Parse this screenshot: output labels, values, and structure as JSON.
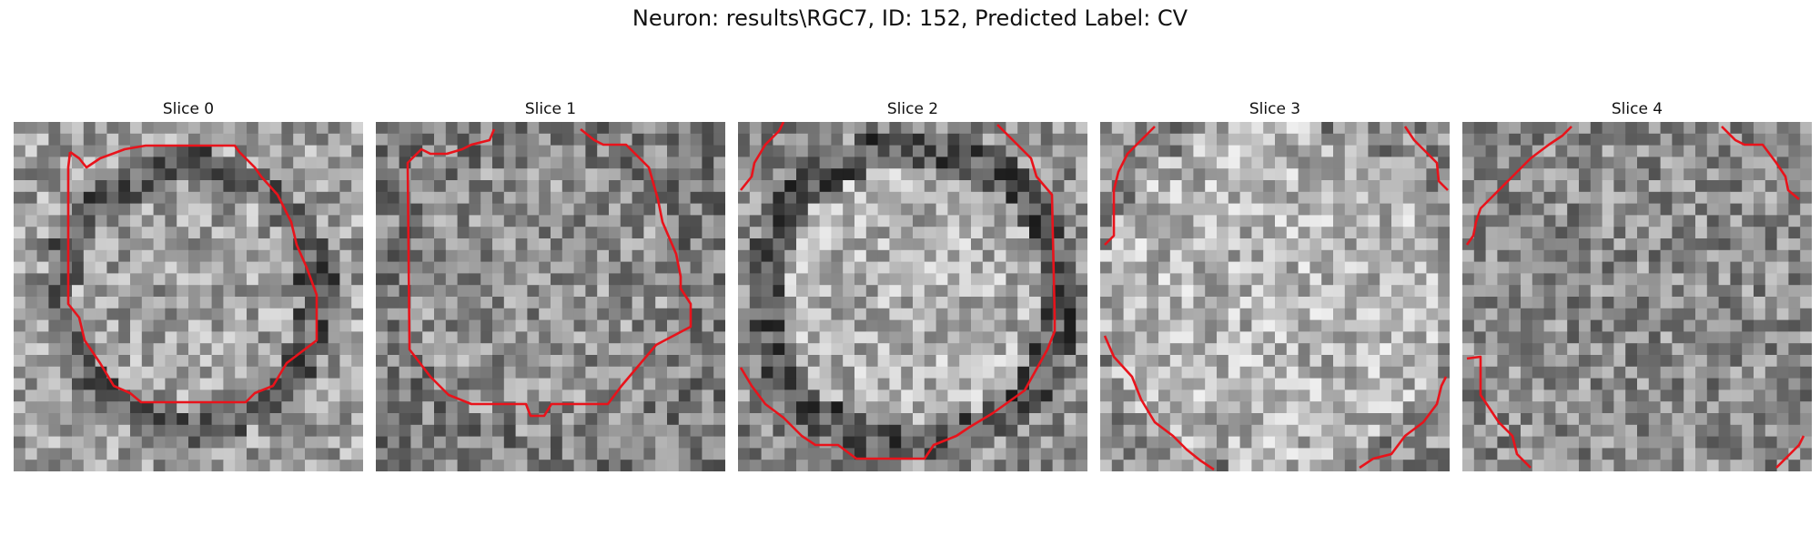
{
  "figure": {
    "title": "Neuron: results\\RGC7, ID: 152, Predicted Label: CV"
  },
  "panels": [
    {
      "title": "Slice 0",
      "seed": 11,
      "contrast": "ring",
      "contour_color": "#e8131b"
    },
    {
      "title": "Slice 1",
      "seed": 23,
      "contrast": "mid",
      "contour_color": "#e8131b"
    },
    {
      "title": "Slice 2",
      "seed": 37,
      "contrast": "bright-ring",
      "contour_color": "#e8131b"
    },
    {
      "title": "Slice 3",
      "seed": 41,
      "contrast": "bright",
      "contour_color": "#e8131b"
    },
    {
      "title": "Slice 4",
      "seed": 53,
      "contrast": "flat",
      "contour_color": "#e8131b"
    }
  ]
}
